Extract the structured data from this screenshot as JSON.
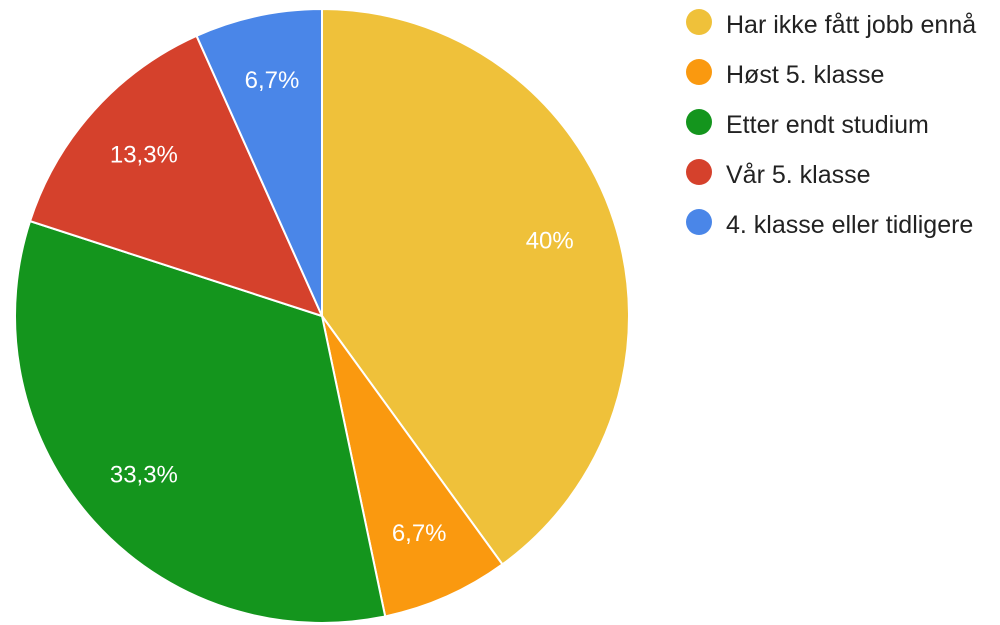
{
  "chart_data": {
    "type": "pie",
    "categories": [
      "Har ikke fått jobb ennå",
      "Høst 5. klasse",
      "Etter endt studium",
      "Vår 5. klasse",
      "4. klasse eller tidligere"
    ],
    "values": [
      40,
      6.7,
      33.3,
      13.3,
      6.7
    ],
    "value_labels": [
      "40%",
      "6,7%",
      "33,3%",
      "13,3%",
      "6,7%"
    ],
    "colors": [
      "#efc13a",
      "#fa990f",
      "#14951d",
      "#d5412c",
      "#4a86e8"
    ]
  }
}
